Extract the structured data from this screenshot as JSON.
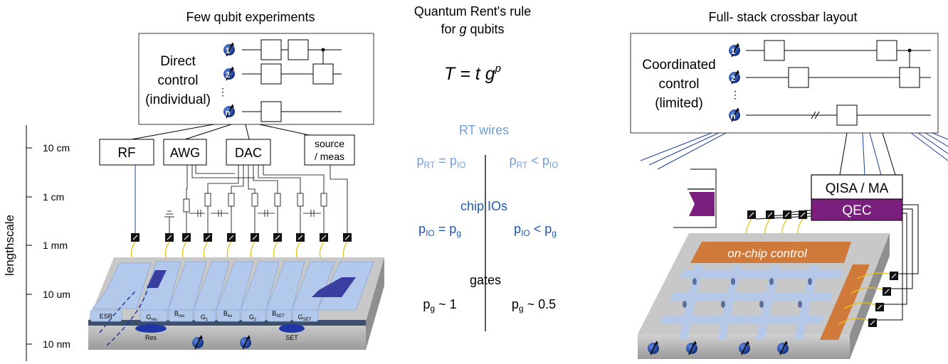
{
  "left_panel": {
    "title": "Few qubit experiments",
    "control_box": [
      "Direct",
      "control",
      "(individual)"
    ],
    "qubits": [
      "1",
      "2",
      "n"
    ],
    "instruments": {
      "rf": "RF",
      "awg": "AWG",
      "dac": "DAC",
      "source": [
        "source",
        "/ meas"
      ]
    },
    "device_labels": {
      "esr": "ESR",
      "gres_main": "G",
      "gres_sub": "res",
      "bres_main": "B",
      "bres_sub": "res",
      "g1_main": "G",
      "g1_sub": "1",
      "bex_main": "B",
      "bex_sub": "ex",
      "g2_main": "G",
      "g2_sub": "2",
      "bset_main": "B",
      "bset_sub": "SET",
      "gset_main": "G",
      "gset_sub": "SET",
      "res": "Res",
      "set": "SET"
    }
  },
  "lengthscale": {
    "axis_label": "lengthscale",
    "ticks": [
      "10 cm",
      "1 cm",
      "1 mm",
      "10 um",
      "10 nm"
    ]
  },
  "center_panel": {
    "title_line1": "Quantum Rent's rule",
    "title_line2_pre": "for ",
    "title_line2_var": "g",
    "title_line2_post": " qubits",
    "formula_main": "T = t g",
    "formula_exp": "p",
    "sections": [
      {
        "name": "RT wires",
        "left_main1": "p",
        "left_sub1": "RT",
        "left_op": " = ",
        "left_main2": "p",
        "left_sub2": "IO",
        "right_main1": "p",
        "right_sub1": "RT",
        "right_op": " < ",
        "right_main2": "p",
        "right_sub2": "IO"
      },
      {
        "name": "chip IOs",
        "left_main1": "p",
        "left_sub1": "IO",
        "left_op": " = ",
        "left_main2": "p",
        "left_sub2": "g",
        "right_main1": "p",
        "right_sub1": "IO",
        "right_op": " < ",
        "right_main2": "p",
        "right_sub2": "g"
      },
      {
        "name": "gates",
        "left_main1": "p",
        "left_sub1": "g",
        "left_op": " ~ 1",
        "right_main1": "p",
        "right_sub1": "g",
        "right_op": " ~ 0.5"
      }
    ]
  },
  "right_panel": {
    "title": "Full- stack crossbar layout",
    "control_box": [
      "Coordinated",
      "control",
      "(limited)"
    ],
    "qubits": [
      "1",
      "2",
      "n"
    ],
    "qisa": "QISA / MA",
    "qec": "QEC",
    "onchip": "on-chip control"
  },
  "colors": {
    "qubit_blue": "#1c3f9e",
    "rt_blue": "#6f9fe0",
    "io_blue": "#1f57b8",
    "gate_metal": "#b3c9ec",
    "qec_purple": "#7a1f7e",
    "onchip_orange": "#cf7a3a",
    "bond_wire": "#e8c21a"
  }
}
